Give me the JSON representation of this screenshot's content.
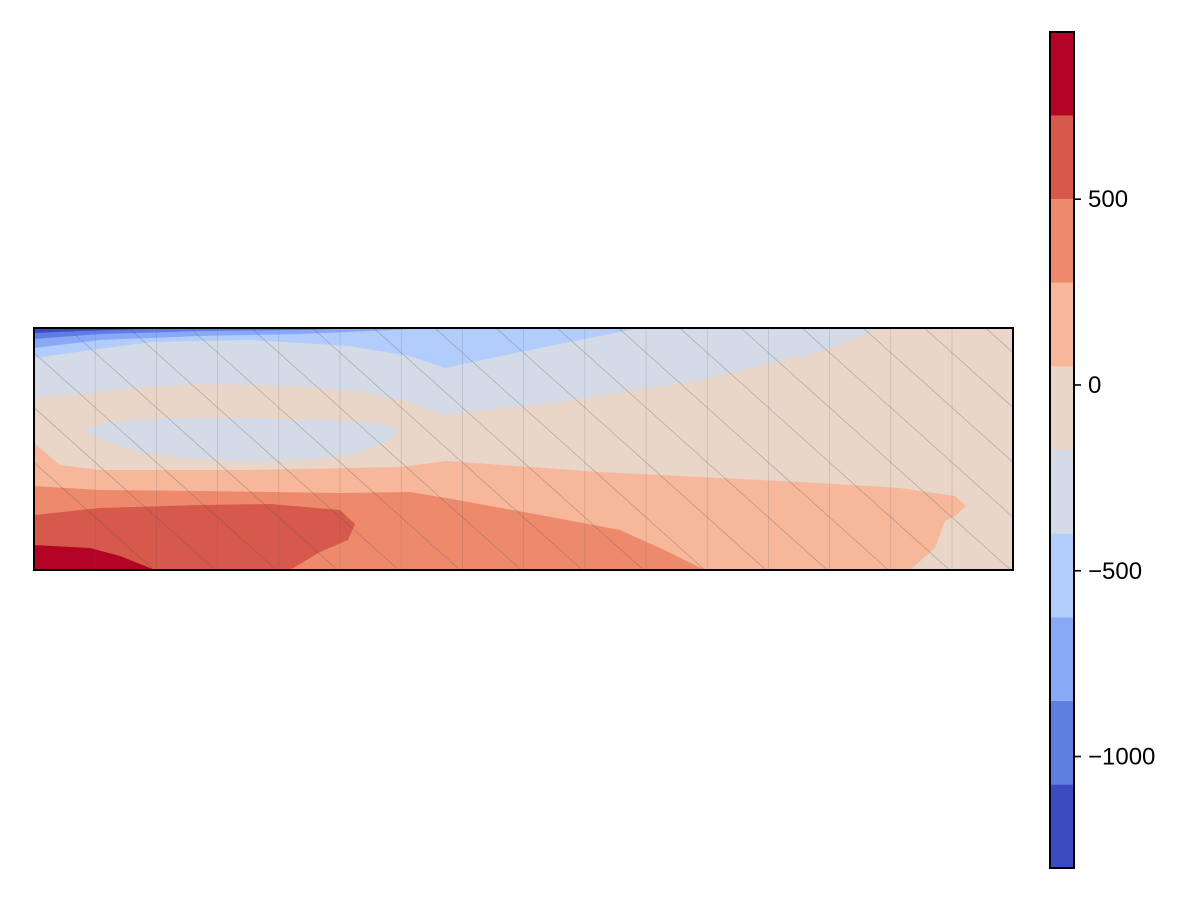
{
  "chart_data": {
    "type": "heatmap",
    "title": "",
    "xlabel": "",
    "ylabel": "",
    "grid": false,
    "axis_ticks_visible": false,
    "hatching": "diagonal lines over plot area",
    "colormap": "coolwarm",
    "levels": [
      -1300,
      -1075,
      -850,
      -625,
      -400,
      -175,
      50,
      275,
      500,
      725,
      950
    ],
    "level_colors": [
      "#3b4cc0",
      "#5f7ee2",
      "#89a9f7",
      "#b2ccfb",
      "#d4dbe6",
      "#ead5c9",
      "#f6b79b",
      "#ee8a6c",
      "#d6594b",
      "#b40426"
    ],
    "colorbar": {
      "placement": "right",
      "range": [
        -1300,
        950
      ],
      "ticks": [
        {
          "value": -1000,
          "label": "−1000"
        },
        {
          "value": -500,
          "label": "−500"
        },
        {
          "value": 0,
          "label": "0"
        },
        {
          "value": 500,
          "label": "500"
        }
      ]
    },
    "field_summary": {
      "top_left": "strong negative (about −1300 to −850)",
      "upper_band": "negative (−625 to −175)",
      "middle_left_pocket": "slightly negative (−400 to −175)",
      "right_side": "near zero (−175 to 50)",
      "lower_band": "positive (50 to 500)",
      "bottom_left": "strong positive (725 to 950)"
    }
  }
}
